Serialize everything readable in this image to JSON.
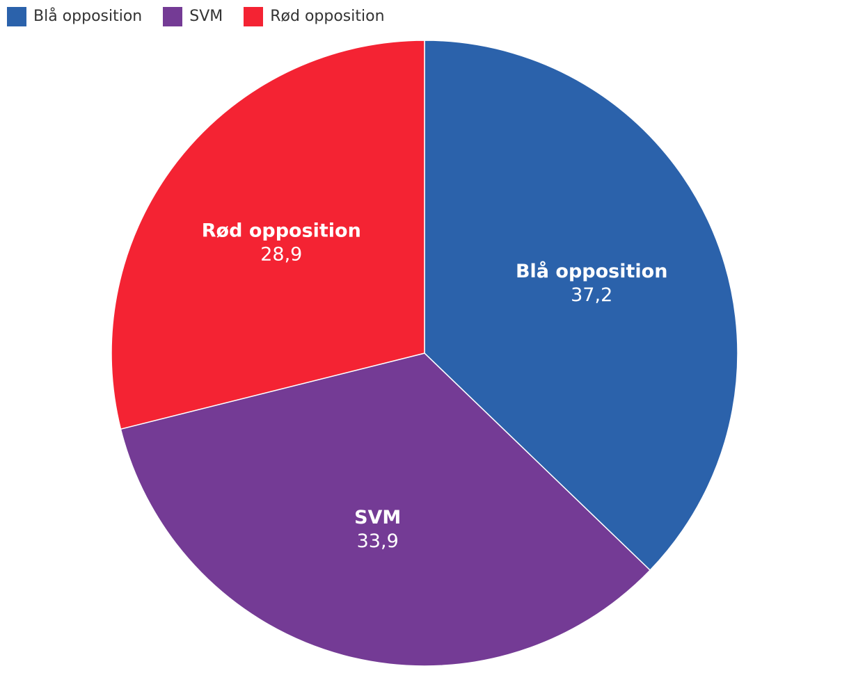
{
  "chart_data": {
    "type": "pie",
    "title": "",
    "legend_position": "top-left",
    "slices": [
      {
        "label": "Blå opposition",
        "value": 37.2,
        "value_label": "37,2",
        "color": "#2b62ab"
      },
      {
        "label": "SVM",
        "value": 33.9,
        "value_label": "33,9",
        "color": "#743b95"
      },
      {
        "label": "Rød opposition",
        "value": 28.9,
        "value_label": "28,9",
        "color": "#f42333"
      }
    ]
  }
}
